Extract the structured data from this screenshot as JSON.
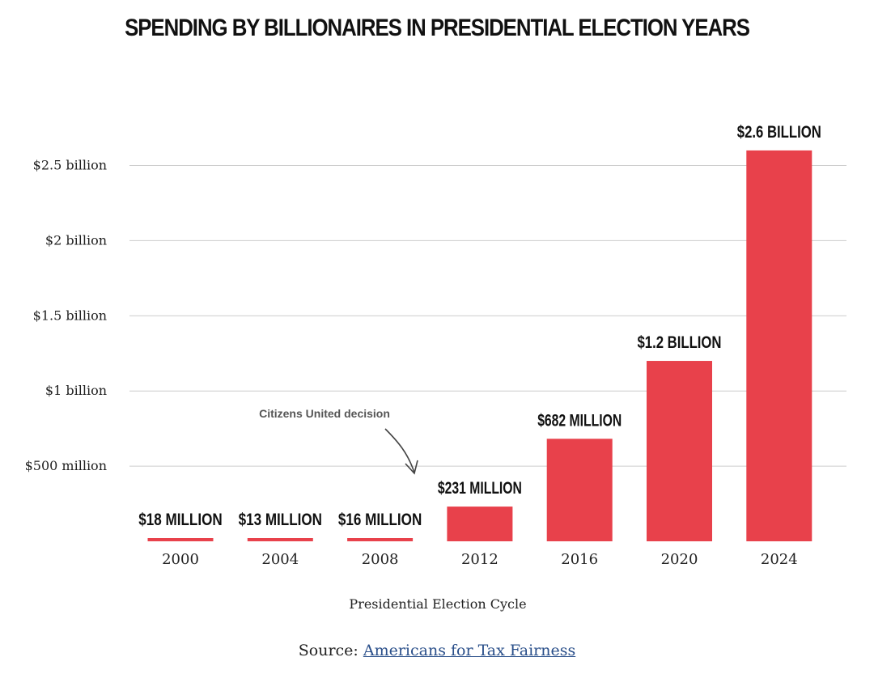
{
  "chart_data": {
    "type": "bar",
    "title": "SPENDING BY BILLIONAIRES IN PRESIDENTIAL ELECTION YEARS",
    "xlabel": "Presidential Election Cycle",
    "ylabel": "",
    "categories": [
      "2000",
      "2004",
      "2008",
      "2012",
      "2016",
      "2020",
      "2024"
    ],
    "values": [
      18000000,
      13000000,
      16000000,
      231000000,
      682000000,
      1200000000,
      2600000000
    ],
    "data_labels": [
      "$18 MILLION",
      "$13 MILLION",
      "$16 MILLION",
      "$231 MILLION",
      "$682 MILLION",
      "$1.2 BILLION",
      "$2.6 BILLION"
    ],
    "y_ticks": [
      {
        "value": 500000000,
        "label": "$500 million"
      },
      {
        "value": 1000000000,
        "label": "$1 billion"
      },
      {
        "value": 1500000000,
        "label": "$1.5 billion"
      },
      {
        "value": 2000000000,
        "label": "$2 billion"
      },
      {
        "value": 2500000000,
        "label": "$2.5 billion"
      }
    ],
    "ylim": [
      0,
      2700000000
    ],
    "grid": true,
    "bar_color": "#e8414b",
    "grid_color": "#cccccc",
    "annotations": [
      {
        "text": "Citizens United decision",
        "points_to": "2012"
      }
    ]
  },
  "source": {
    "prefix": "Source:",
    "link_text": "Americans for Tax Fairness"
  }
}
